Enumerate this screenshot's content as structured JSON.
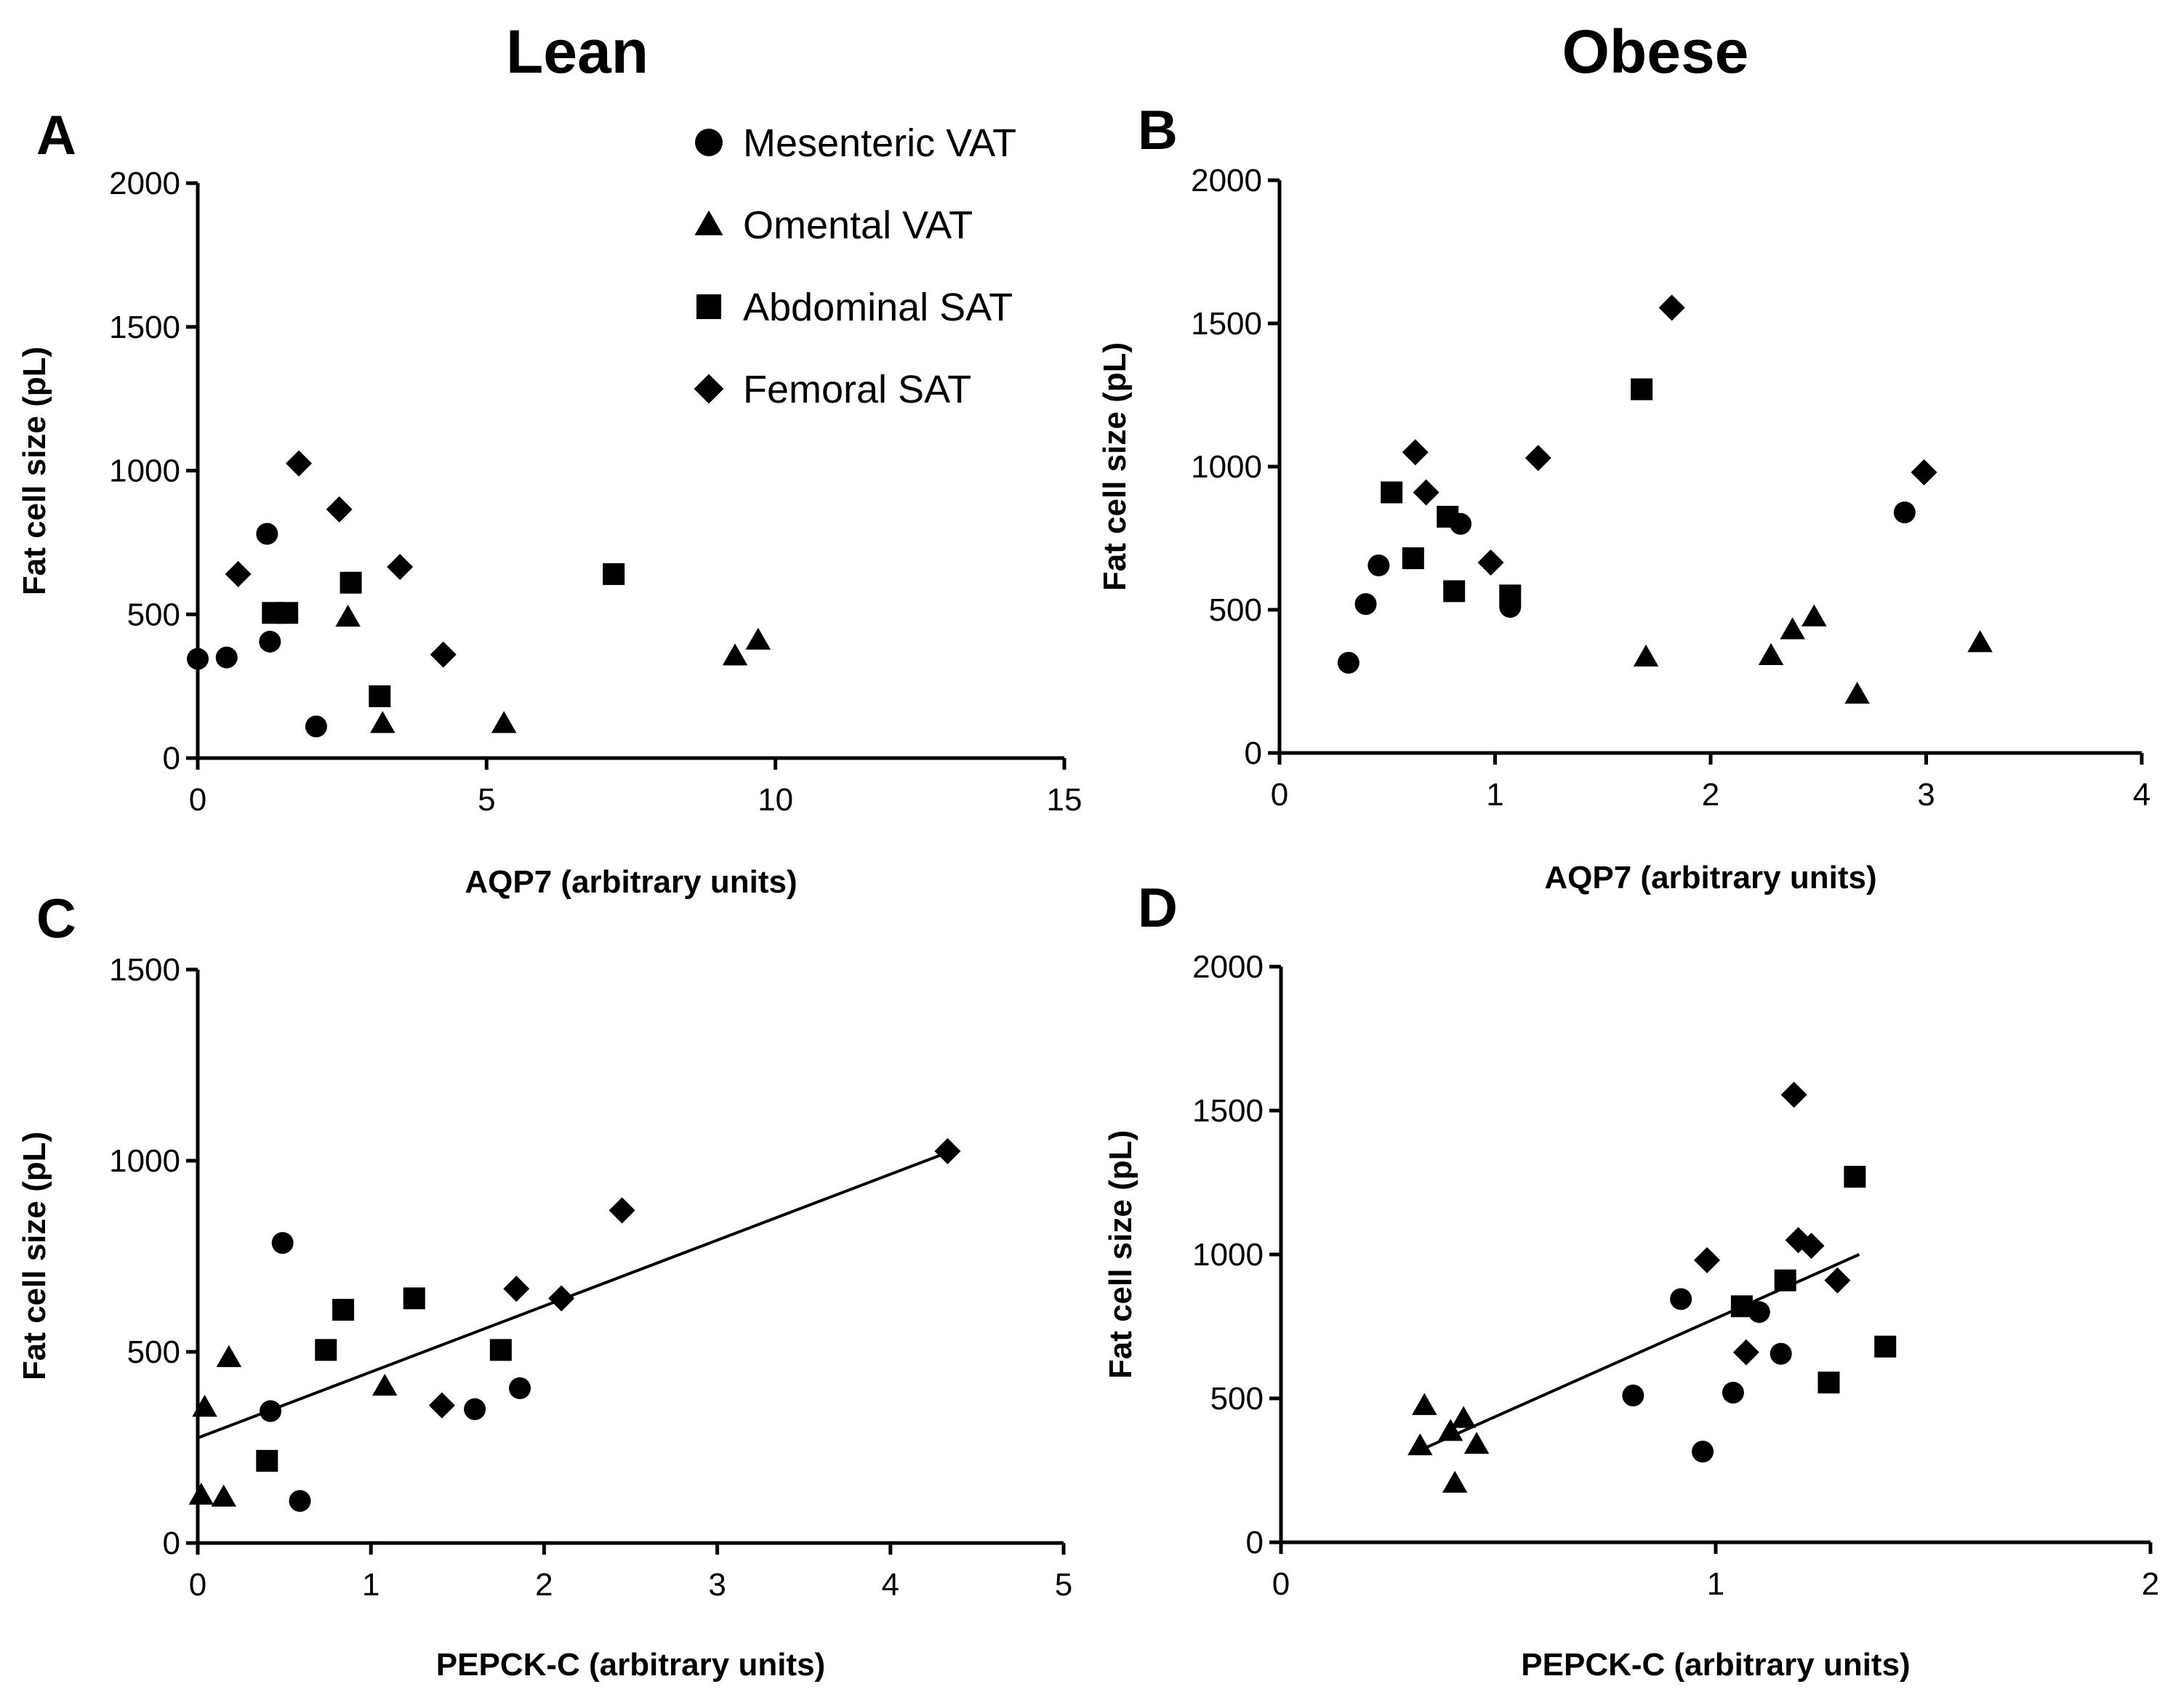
{
  "column_titles": {
    "left": "Lean",
    "right": "Obese"
  },
  "legend": [
    {
      "label": "Mesenteric VAT",
      "marker": "circle-marker"
    },
    {
      "label": "Omental VAT",
      "marker": "triangle-marker"
    },
    {
      "label": "Abdominal SAT",
      "marker": "square-marker"
    },
    {
      "label": "Femoral SAT",
      "marker": "diamond-marker"
    }
  ],
  "chart_data": [
    {
      "panel": "A",
      "type": "scatter",
      "group": "Lean",
      "xlabel": "AQP7 (arbitrary units)",
      "ylabel": "Fat cell size (pL)",
      "xlim": [
        0,
        15
      ],
      "ylim": [
        0,
        2000
      ],
      "xticks": [
        0,
        5,
        10,
        15
      ],
      "yticks": [
        0,
        500,
        1000,
        1500,
        2000
      ],
      "series": [
        {
          "name": "Mesenteric VAT",
          "marker": "circle",
          "points": [
            [
              0.0,
              345
            ],
            [
              0.5,
              350
            ],
            [
              1.2,
              780
            ],
            [
              1.25,
              405
            ],
            [
              2.05,
              110
            ]
          ]
        },
        {
          "name": "Omental VAT",
          "marker": "triangle",
          "points": [
            [
              2.6,
              490
            ],
            [
              3.2,
              120
            ],
            [
              5.3,
              120
            ],
            [
              9.3,
              355
            ],
            [
              9.7,
              410
            ]
          ]
        },
        {
          "name": "Abdominal SAT",
          "marker": "square",
          "points": [
            [
              1.3,
              505
            ],
            [
              1.55,
              505
            ],
            [
              2.65,
              610
            ],
            [
              3.15,
              215
            ],
            [
              7.2,
              640
            ]
          ]
        },
        {
          "name": "Femoral SAT",
          "marker": "diamond",
          "points": [
            [
              0.7,
              640
            ],
            [
              1.75,
              1025
            ],
            [
              2.45,
              865
            ],
            [
              3.5,
              665
            ],
            [
              4.25,
              360
            ]
          ]
        }
      ]
    },
    {
      "panel": "B",
      "type": "scatter",
      "group": "Obese",
      "xlabel": "AQP7 (arbitrary units)",
      "ylabel": "Fat cell size (pL)",
      "xlim": [
        0,
        4
      ],
      "ylim": [
        0,
        2000
      ],
      "xticks": [
        0,
        1,
        2,
        3,
        4
      ],
      "yticks": [
        0,
        500,
        1000,
        1500,
        2000
      ],
      "series": [
        {
          "name": "Mesenteric VAT",
          "marker": "circle",
          "points": [
            [
              0.32,
              315
            ],
            [
              0.4,
              520
            ],
            [
              0.46,
              655
            ],
            [
              0.84,
              800
            ],
            [
              1.07,
              510
            ],
            [
              2.9,
              840
            ]
          ]
        },
        {
          "name": "Omental VAT",
          "marker": "triangle",
          "points": [
            [
              1.7,
              335
            ],
            [
              2.28,
              340
            ],
            [
              2.38,
              430
            ],
            [
              2.48,
              475
            ],
            [
              2.68,
              205
            ],
            [
              3.25,
              385
            ]
          ]
        },
        {
          "name": "Abdominal SAT",
          "marker": "square",
          "points": [
            [
              0.52,
              910
            ],
            [
              0.62,
              680
            ],
            [
              0.78,
              825
            ],
            [
              0.81,
              565
            ],
            [
              1.07,
              550
            ],
            [
              1.68,
              1270
            ]
          ]
        },
        {
          "name": "Femoral SAT",
          "marker": "diamond",
          "points": [
            [
              0.63,
              1050
            ],
            [
              0.68,
              910
            ],
            [
              0.98,
              665
            ],
            [
              1.2,
              1030
            ],
            [
              1.82,
              1555
            ],
            [
              2.99,
              980
            ]
          ]
        }
      ]
    },
    {
      "panel": "C",
      "type": "scatter",
      "group": "Lean",
      "xlabel": "PEPCK-C (arbitrary units)",
      "ylabel": "Fat cell size (pL)",
      "xlim": [
        0,
        5
      ],
      "ylim": [
        0,
        1500
      ],
      "xticks": [
        0,
        1,
        2,
        3,
        4,
        5
      ],
      "yticks": [
        0,
        500,
        1000,
        1500
      ],
      "regression_line": [
        [
          0,
          275
        ],
        [
          4.35,
          1025
        ]
      ],
      "series": [
        {
          "name": "Mesenteric VAT",
          "marker": "circle",
          "points": [
            [
              0.42,
              345
            ],
            [
              0.49,
              785
            ],
            [
              0.59,
              110
            ],
            [
              1.6,
              350
            ],
            [
              1.86,
              405
            ]
          ]
        },
        {
          "name": "Omental VAT",
          "marker": "triangle",
          "points": [
            [
              0.02,
              125
            ],
            [
              0.04,
              355
            ],
            [
              0.15,
              120
            ],
            [
              0.18,
              485
            ],
            [
              1.08,
              410
            ]
          ]
        },
        {
          "name": "Abdominal SAT",
          "marker": "square",
          "points": [
            [
              0.4,
              215
            ],
            [
              0.74,
              505
            ],
            [
              0.84,
              610
            ],
            [
              1.25,
              640
            ],
            [
              1.75,
              505
            ]
          ]
        },
        {
          "name": "Femoral SAT",
          "marker": "diamond",
          "points": [
            [
              1.41,
              360
            ],
            [
              1.84,
              665
            ],
            [
              2.1,
              640
            ],
            [
              2.45,
              870
            ],
            [
              4.33,
              1025
            ]
          ]
        }
      ]
    },
    {
      "panel": "D",
      "type": "scatter",
      "group": "Obese",
      "xlabel": "PEPCK-C (arbitrary units)",
      "ylabel": "Fat cell size (pL)",
      "xlim": [
        0,
        2
      ],
      "ylim": [
        0,
        2000
      ],
      "xticks": [
        0,
        1,
        2
      ],
      "yticks": [
        0,
        500,
        1000,
        1500,
        2000
      ],
      "regression_line": [
        [
          0.32,
          320
        ],
        [
          1.33,
          1000
        ]
      ],
      "series": [
        {
          "name": "Mesenteric VAT",
          "marker": "circle",
          "points": [
            [
              0.81,
              510
            ],
            [
              0.92,
              845
            ],
            [
              0.97,
              315
            ],
            [
              1.04,
              520
            ],
            [
              1.1,
              800
            ],
            [
              1.15,
              655
            ]
          ]
        },
        {
          "name": "Omental VAT",
          "marker": "triangle",
          "points": [
            [
              0.32,
              335
            ],
            [
              0.33,
              475
            ],
            [
              0.39,
              385
            ],
            [
              0.4,
              205
            ],
            [
              0.42,
              430
            ],
            [
              0.45,
              340
            ]
          ]
        },
        {
          "name": "Abdominal SAT",
          "marker": "square",
          "points": [
            [
              1.06,
              820
            ],
            [
              1.16,
              910
            ],
            [
              1.26,
              555
            ],
            [
              1.32,
              1270
            ],
            [
              1.39,
              680
            ]
          ]
        },
        {
          "name": "Femoral SAT",
          "marker": "diamond",
          "points": [
            [
              0.98,
              980
            ],
            [
              1.07,
              660
            ],
            [
              1.18,
              1555
            ],
            [
              1.19,
              1050
            ],
            [
              1.22,
              1030
            ],
            [
              1.28,
              910
            ]
          ]
        }
      ]
    }
  ]
}
